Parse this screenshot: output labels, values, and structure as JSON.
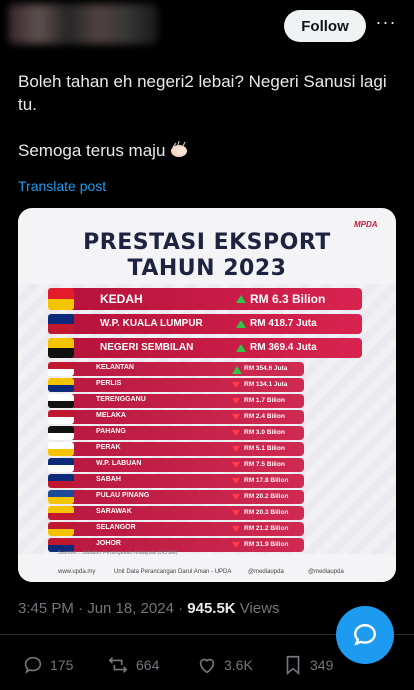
{
  "header": {
    "follow_label": "Follow",
    "more_label": "···"
  },
  "post": {
    "line1": "Boleh tahan eh negeri2 lebai? Negeri Sanusi lagi tu.",
    "line2": "Semoga terus maju",
    "translate": "Translate post"
  },
  "infographic": {
    "title_line1": "PRESTASI EKSPORT",
    "title_line2": "TAHUN 2023",
    "logo": "MPDA",
    "source": "Sumber : Jabatan Perangkaan Malaysia (DOSM)",
    "footer": [
      "www.upda.my",
      "Unit Data Perancangan Darul Aman - UPDA",
      "@mediaupda",
      "@mediaupda"
    ],
    "rows": [
      {
        "state": "KEDAH",
        "value": "RM 6.3 Bilion",
        "trend": "up"
      },
      {
        "state": "W.P. KUALA LUMPUR",
        "value": "RM 418.7 Juta",
        "trend": "up"
      },
      {
        "state": "NEGERI SEMBILAN",
        "value": "RM 369.4 Juta",
        "trend": "up"
      },
      {
        "state": "KELANTAN",
        "value": "RM 354.6 Juta",
        "trend": "up"
      },
      {
        "state": "PERLIS",
        "value": "RM 134.1 Juta",
        "trend": "down"
      },
      {
        "state": "TERENGGANU",
        "value": "RM 1.7 Bilion",
        "trend": "down"
      },
      {
        "state": "MELAKA",
        "value": "RM 2.4 Bilion",
        "trend": "down"
      },
      {
        "state": "PAHANG",
        "value": "RM 3.0 Bilion",
        "trend": "down"
      },
      {
        "state": "PERAK",
        "value": "RM 5.1 Bilion",
        "trend": "down"
      },
      {
        "state": "W.P. LABUAN",
        "value": "RM 7.5 Bilion",
        "trend": "down"
      },
      {
        "state": "SABAH",
        "value": "RM 17.8 Bilion",
        "trend": "down"
      },
      {
        "state": "PULAU PINANG",
        "value": "RM 20.2 Bilion",
        "trend": "down"
      },
      {
        "state": "SARAWAK",
        "value": "RM 20.3 Bilion",
        "trend": "down"
      },
      {
        "state": "SELANGOR",
        "value": "RM 21.2 Bilion",
        "trend": "down"
      },
      {
        "state": "JOHOR",
        "value": "RM 31.9 Bilion",
        "trend": "down"
      }
    ]
  },
  "meta": {
    "time": "3:45 PM · Jun 18, 2024 · ",
    "views_count": "945.5K",
    "views_label": " Views"
  },
  "actions": {
    "replies": "175",
    "reposts": "664",
    "likes": "3.6K",
    "bookmarks": "349"
  },
  "colors": {
    "accent": "#1d9bf0",
    "background": "#000000",
    "up": "#2fc44a",
    "down": "#ff3b4f",
    "bar": "#c41a44"
  }
}
